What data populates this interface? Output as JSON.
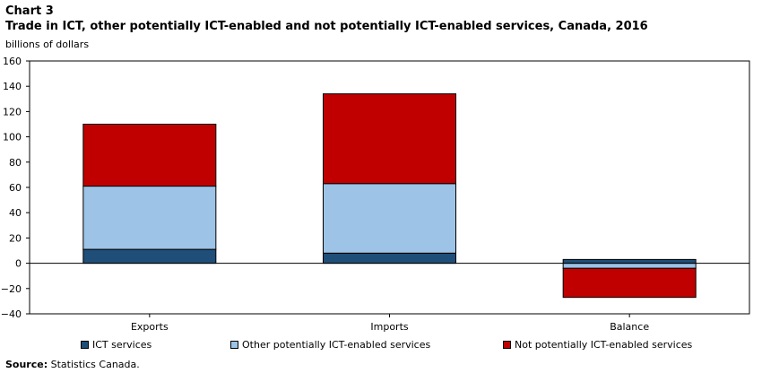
{
  "header": {
    "chart_label": "Chart 3",
    "title": "Trade in ICT, other potentially ICT-enabled and not potentially ICT-enabled  services, Canada, 2016",
    "y_unit": "billions of dollars"
  },
  "source": {
    "label": "Source:",
    "text": " Statistics Canada."
  },
  "chart_data": {
    "type": "bar",
    "stacked": true,
    "categories": [
      "Exports",
      "Imports",
      "Balance"
    ],
    "series": [
      {
        "name": "ICT services",
        "color": "#1f4e79",
        "values": [
          11,
          8,
          3
        ]
      },
      {
        "name": "Other potentially ICT-enabled services",
        "color": "#9dc3e6",
        "values": [
          50,
          55,
          -4
        ]
      },
      {
        "name": "Not potentially ICT-enabled services",
        "color": "#c00000",
        "values": [
          49,
          71,
          -23
        ]
      }
    ],
    "ylabel": "billions of dollars",
    "ylim": [
      -40,
      160
    ],
    "yticks": [
      -40,
      -20,
      0,
      20,
      40,
      60,
      80,
      100,
      120,
      140,
      160
    ],
    "legend_position": "bottom",
    "grid": false
  }
}
